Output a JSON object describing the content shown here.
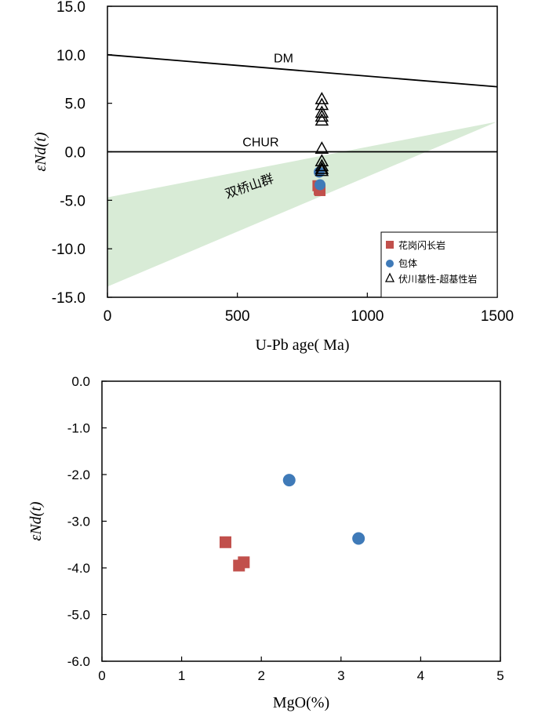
{
  "chart_data": [
    {
      "type": "line",
      "xlabel": "U-Pb age( Ma)",
      "ylabel": "εNd(t)",
      "xlim": [
        0,
        1500
      ],
      "ylim": [
        -15,
        15
      ],
      "xticks": [
        "0",
        "500",
        "1000",
        "1500"
      ],
      "yticks": [
        "15.0",
        "10.0",
        "5.0",
        "0.0",
        "-5.0",
        "-10.0",
        "-15.0"
      ],
      "grid": false,
      "legend_position": "bottom-right",
      "reference_lines": [
        {
          "label": "DM",
          "x": [
            0,
            1500
          ],
          "y": [
            10.0,
            6.7
          ]
        },
        {
          "label": "CHUR",
          "x": [
            0,
            1500
          ],
          "y": [
            0.0,
            0.0
          ]
        }
      ],
      "field": {
        "label": "双桥山群",
        "color": "#d8ebd6",
        "upper": {
          "x": [
            0,
            1500
          ],
          "y": [
            -4.7,
            3.1
          ]
        },
        "lower": {
          "x": [
            0,
            1500
          ],
          "y": [
            -13.9,
            3.1
          ]
        }
      },
      "series": [
        {
          "name": "花岗闪长岩",
          "marker": "square",
          "color": "#c1504c",
          "x": [
            810,
            815,
            818
          ],
          "y": [
            -3.5,
            -3.9,
            -4.0
          ]
        },
        {
          "name": "包体",
          "marker": "circle",
          "color": "#3f7ab8",
          "x": [
            815,
            818
          ],
          "y": [
            -2.1,
            -3.4
          ]
        },
        {
          "name": "伏川基性-超基性岩",
          "marker": "triangle",
          "color": "#000000",
          "x": [
            825,
            825,
            825,
            825,
            825,
            825,
            825,
            825,
            825,
            825
          ],
          "y": [
            5.4,
            4.8,
            4.0,
            3.6,
            3.2,
            0.3,
            -1.0,
            -1.5,
            -1.8,
            -2.0
          ]
        }
      ]
    },
    {
      "type": "scatter",
      "xlabel": "MgO(%)",
      "ylabel": "εNd(t)",
      "xlim": [
        0,
        5
      ],
      "ylim": [
        -6,
        0
      ],
      "xticks": [
        "0",
        "1",
        "2",
        "3",
        "4",
        "5"
      ],
      "yticks": [
        "0.0",
        "-1.0",
        "-2.0",
        "-3.0",
        "-4.0",
        "-5.0",
        "-6.0"
      ],
      "grid": false,
      "series": [
        {
          "name": "花岗闪长岩",
          "marker": "square",
          "color": "#c1504c",
          "x": [
            1.55,
            1.72,
            1.78
          ],
          "y": [
            -3.45,
            -3.95,
            -3.88
          ]
        },
        {
          "name": "包体",
          "marker": "circle",
          "color": "#3f7ab8",
          "x": [
            2.35,
            3.22
          ],
          "y": [
            -2.12,
            -3.37
          ]
        }
      ]
    }
  ]
}
